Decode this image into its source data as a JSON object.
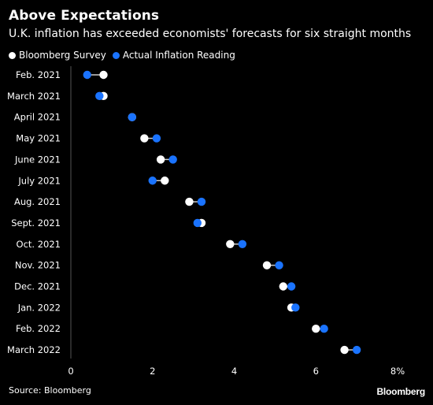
{
  "header": {
    "title": "Above Expectations",
    "subtitle": "U.K. inflation has exceeded economists' forecasts for six straight months"
  },
  "legend": {
    "items": [
      {
        "label": "Bloomberg Survey",
        "color": "#ffffff"
      },
      {
        "label": "Actual Inflation Reading",
        "color": "#1a73ff"
      }
    ]
  },
  "footer": {
    "source": "Source: Bloomberg",
    "brand": "Bloomberg"
  },
  "chart_data": {
    "type": "scatter",
    "title": "Above Expectations",
    "subtitle": "U.K. inflation has exceeded economists' forecasts for six straight months",
    "xlim": [
      0,
      8
    ],
    "x_ticks": [
      0,
      2,
      4,
      6,
      8
    ],
    "x_tick_labels": [
      "0",
      "2",
      "4",
      "6",
      "8%"
    ],
    "categories": [
      "Feb. 2021",
      "March 2021",
      "April 2021",
      "May 2021",
      "June 2021",
      "July 2021",
      "Aug. 2021",
      "Sept. 2021",
      "Oct. 2021",
      "Nov. 2021",
      "Dec. 2021",
      "Jan. 2022",
      "Feb. 2022",
      "March 2022"
    ],
    "series": [
      {
        "name": "Bloomberg Survey",
        "color": "#ffffff",
        "values": [
          0.8,
          0.8,
          1.5,
          1.8,
          2.2,
          2.3,
          2.9,
          3.2,
          3.9,
          4.8,
          5.2,
          5.4,
          6.0,
          6.7
        ]
      },
      {
        "name": "Actual Inflation Reading",
        "color": "#1a73ff",
        "values": [
          0.4,
          0.7,
          1.5,
          2.1,
          2.5,
          2.0,
          3.2,
          3.1,
          4.2,
          5.1,
          5.4,
          5.5,
          6.2,
          7.0
        ]
      }
    ],
    "grid": false,
    "legend_position": "top-left"
  }
}
